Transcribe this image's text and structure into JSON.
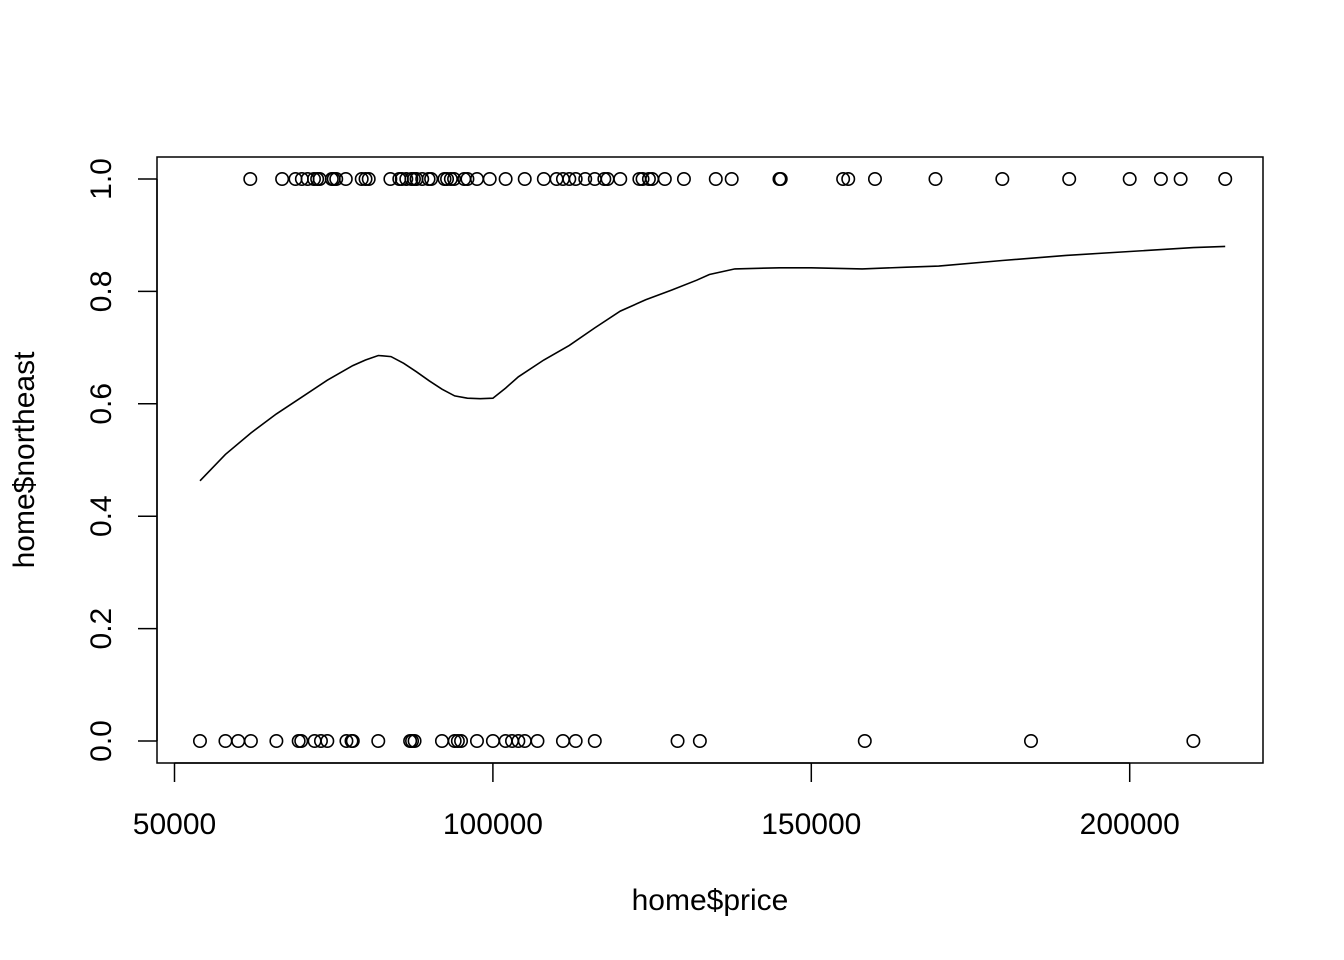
{
  "chart_data": {
    "type": "scatter",
    "xlabel": "home$price",
    "ylabel": "home$northeast",
    "xlim": [
      50000,
      215000
    ],
    "ylim": [
      0,
      1
    ],
    "x_ticks": [
      50000,
      100000,
      150000,
      200000
    ],
    "x_tick_labels": [
      "50000",
      "100000",
      "150000",
      "200000"
    ],
    "y_ticks": [
      0.0,
      0.2,
      0.4,
      0.6,
      0.8,
      1.0
    ],
    "y_tick_labels": [
      "0.0",
      "0.2",
      "0.4",
      "0.6",
      "0.8",
      "1.0"
    ],
    "grid": false,
    "points_northeast_1": [
      61900,
      66900,
      69000,
      70000,
      70900,
      71900,
      72400,
      72800,
      74700,
      75000,
      75400,
      76900,
      79400,
      80000,
      80500,
      83900,
      85300,
      85700,
      86400,
      87200,
      87600,
      88000,
      88900,
      89900,
      90300,
      92400,
      92800,
      93400,
      93900,
      95500,
      96000,
      97500,
      99500,
      102000,
      105000,
      108000,
      110000,
      111000,
      112000,
      113000,
      114500,
      116000,
      117500,
      118000,
      120000,
      123000,
      123500,
      124500,
      125000,
      127000,
      130000,
      135000,
      137500,
      145000,
      145200,
      155000,
      155800,
      160000,
      169500,
      180000,
      190500,
      200000,
      204900,
      208000,
      215000
    ],
    "points_northeast_0": [
      54000,
      58000,
      60000,
      62000,
      66000,
      69500,
      69900,
      72000,
      73000,
      74000,
      77000,
      77800,
      78000,
      82000,
      87000,
      87300,
      87700,
      92000,
      94000,
      94500,
      95000,
      97500,
      100000,
      102000,
      103000,
      104000,
      105000,
      107000,
      111000,
      113000,
      116000,
      129000,
      132500,
      158400,
      184500,
      210000
    ],
    "series": [
      {
        "type": "line",
        "x": [
          54000,
          58000,
          62000,
          66000,
          70000,
          74000,
          78000,
          80000,
          82000,
          84000,
          86000,
          88000,
          90000,
          92000,
          94000,
          96000,
          98000,
          100000,
          102000,
          104000,
          108000,
          112000,
          116000,
          120000,
          124000,
          128000,
          132000,
          134000,
          138000,
          145000,
          150000,
          158000,
          165000,
          170000,
          180000,
          190000,
          200000,
          210000,
          215000
        ],
        "y": [
          0.463,
          0.51,
          0.548,
          0.582,
          0.612,
          0.642,
          0.668,
          0.678,
          0.686,
          0.684,
          0.672,
          0.657,
          0.641,
          0.626,
          0.614,
          0.61,
          0.609,
          0.61,
          0.628,
          0.648,
          0.678,
          0.704,
          0.735,
          0.765,
          0.785,
          0.802,
          0.82,
          0.83,
          0.84,
          0.842,
          0.842,
          0.84,
          0.843,
          0.845,
          0.855,
          0.864,
          0.871,
          0.878,
          0.88
        ]
      }
    ]
  }
}
